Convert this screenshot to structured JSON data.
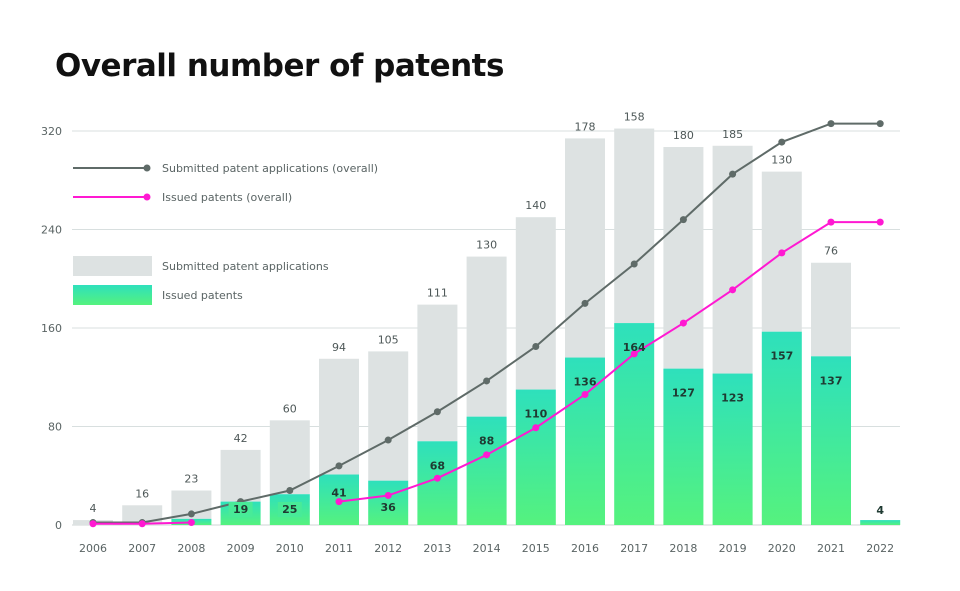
{
  "title": "Overall number of patents",
  "chart_data": {
    "type": "bar",
    "title": "Overall number of patents",
    "xlabel": "",
    "ylabel": "",
    "ylim": [
      0,
      320
    ],
    "yticks": [
      0,
      80,
      160,
      240,
      320
    ],
    "grid": true,
    "legend_position": "top-left",
    "categories": [
      "2006",
      "2007",
      "2008",
      "2009",
      "2010",
      "2011",
      "2012",
      "2013",
      "2014",
      "2015",
      "2016",
      "2017",
      "2018",
      "2019",
      "2020",
      "2021",
      "2022"
    ],
    "stacked": true,
    "series": [
      {
        "name": "Issued patents",
        "kind": "bar",
        "color": "#3ee6a6",
        "values": [
          0,
          0,
          5,
          19,
          25,
          41,
          36,
          68,
          88,
          110,
          136,
          164,
          127,
          123,
          157,
          137,
          4
        ],
        "labels_shown": [
          false,
          false,
          false,
          true,
          true,
          true,
          true,
          true,
          true,
          true,
          true,
          true,
          true,
          true,
          true,
          true,
          true
        ]
      },
      {
        "name": "Submitted patent applications",
        "kind": "bar",
        "color": "#dde2e2",
        "values": [
          4,
          16,
          23,
          42,
          60,
          94,
          105,
          111,
          130,
          140,
          178,
          158,
          180,
          185,
          130,
          76,
          0
        ],
        "labels_shown": [
          true,
          true,
          true,
          true,
          true,
          true,
          true,
          true,
          true,
          true,
          true,
          true,
          true,
          true,
          true,
          true,
          false
        ]
      },
      {
        "name": "Submitted patent applications (overall)",
        "kind": "line",
        "color": "#5f6b68",
        "values": [
          2,
          2,
          9,
          19,
          28,
          48,
          69,
          92,
          117,
          145,
          180,
          212,
          248,
          285,
          311,
          326,
          326
        ]
      },
      {
        "name": "Issued patents (overall)",
        "kind": "line",
        "color": "#ff19d2",
        "values": [
          1,
          1,
          2,
          null,
          null,
          19,
          24,
          38,
          57,
          79,
          106,
          139,
          164,
          191,
          221,
          246,
          246
        ]
      }
    ]
  }
}
